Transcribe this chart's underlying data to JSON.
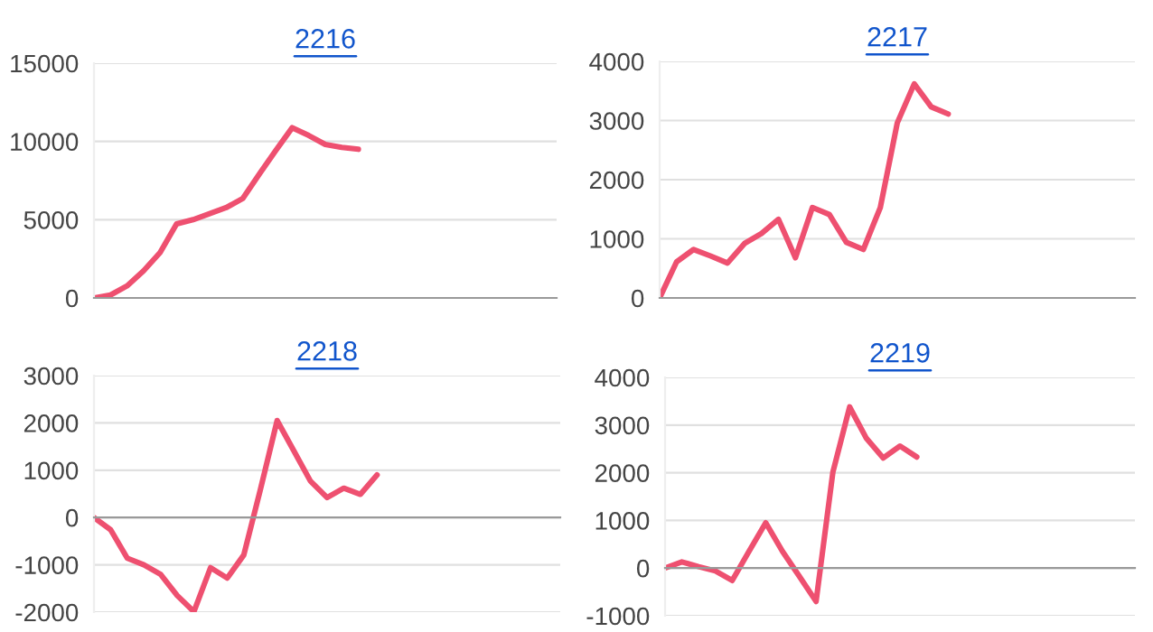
{
  "chart_data": [
    {
      "type": "line",
      "title": "2216",
      "categories": [
        null,
        null,
        null,
        null,
        null,
        null,
        null,
        null,
        null,
        null,
        null,
        null,
        null,
        null,
        null,
        null,
        null,
        null,
        null,
        null,
        null,
        null,
        null,
        null,
        null,
        null,
        null,
        null,
        null
      ],
      "series": [
        {
          "color": "#ee5070",
          "values": [
            0,
            190,
            770,
            1730,
            2900,
            4730,
            5000,
            5380,
            5770,
            6350,
            7900,
            9420,
            10880,
            10380,
            9810,
            9620,
            9500,
            null,
            null,
            null,
            null,
            null,
            null,
            null,
            null,
            null,
            null,
            null,
            null
          ]
        }
      ],
      "ylim": [
        0,
        15000
      ],
      "yticks": [
        0,
        5000,
        10000,
        15000
      ],
      "grid": "y",
      "legend": false,
      "marker": "none",
      "line_style": "solid",
      "tick_labels": "y"
    },
    {
      "type": "line",
      "title": "2217",
      "categories": [
        null,
        null,
        null,
        null,
        null,
        null,
        null,
        null,
        null,
        null,
        null,
        null,
        null,
        null,
        null,
        null,
        null,
        null,
        null,
        null,
        null,
        null,
        null,
        null,
        null,
        null,
        null,
        null,
        null
      ],
      "series": [
        {
          "color": "#ee5070",
          "values": [
            0,
            610,
            820,
            710,
            590,
            920,
            1090,
            1330,
            680,
            1530,
            1410,
            940,
            820,
            1530,
            2960,
            3620,
            3230,
            3110,
            null,
            null,
            null,
            null,
            null,
            null,
            null,
            null,
            null,
            null,
            null
          ]
        }
      ],
      "ylim": [
        0,
        4000
      ],
      "yticks": [
        0,
        1000,
        2000,
        3000,
        4000
      ],
      "grid": "y",
      "legend": false,
      "marker": "none",
      "line_style": "solid",
      "tick_labels": "y"
    },
    {
      "type": "line",
      "title": "2218",
      "categories": [
        null,
        null,
        null,
        null,
        null,
        null,
        null,
        null,
        null,
        null,
        null,
        null,
        null,
        null,
        null,
        null,
        null,
        null,
        null,
        null,
        null,
        null,
        null,
        null,
        null,
        null,
        null,
        null,
        null
      ],
      "series": [
        {
          "color": "#ee5070",
          "values": [
            0,
            -260,
            -860,
            -1000,
            -1200,
            -1650,
            -1990,
            -1060,
            -1280,
            -790,
            600,
            2050,
            1410,
            770,
            420,
            620,
            490,
            900,
            null,
            null,
            null,
            null,
            null,
            null,
            null,
            null,
            null,
            null,
            null
          ]
        }
      ],
      "ylim": [
        -2000,
        3000
      ],
      "yticks": [
        -2000,
        -1000,
        0,
        1000,
        2000,
        3000
      ],
      "grid": "y",
      "legend": false,
      "marker": "none",
      "line_style": "solid",
      "tick_labels": "y"
    },
    {
      "type": "line",
      "title": "2219",
      "categories": [
        null,
        null,
        null,
        null,
        null,
        null,
        null,
        null,
        null,
        null,
        null,
        null,
        null,
        null,
        null,
        null,
        null,
        null,
        null,
        null,
        null,
        null,
        null,
        null,
        null,
        null,
        null,
        null,
        null
      ],
      "series": [
        {
          "color": "#ee5070",
          "values": [
            0,
            130,
            30,
            -60,
            -260,
            350,
            950,
            350,
            -170,
            -700,
            2010,
            3380,
            2720,
            2310,
            2560,
            2330,
            null,
            null,
            null,
            null,
            null,
            null,
            null,
            null,
            null,
            null,
            null,
            null,
            null
          ]
        }
      ],
      "ylim": [
        -1000,
        4000
      ],
      "yticks": [
        -1000,
        0,
        1000,
        2000,
        3000,
        4000
      ],
      "grid": "y",
      "legend": false,
      "marker": "none",
      "line_style": "solid",
      "tick_labels": "y"
    }
  ]
}
